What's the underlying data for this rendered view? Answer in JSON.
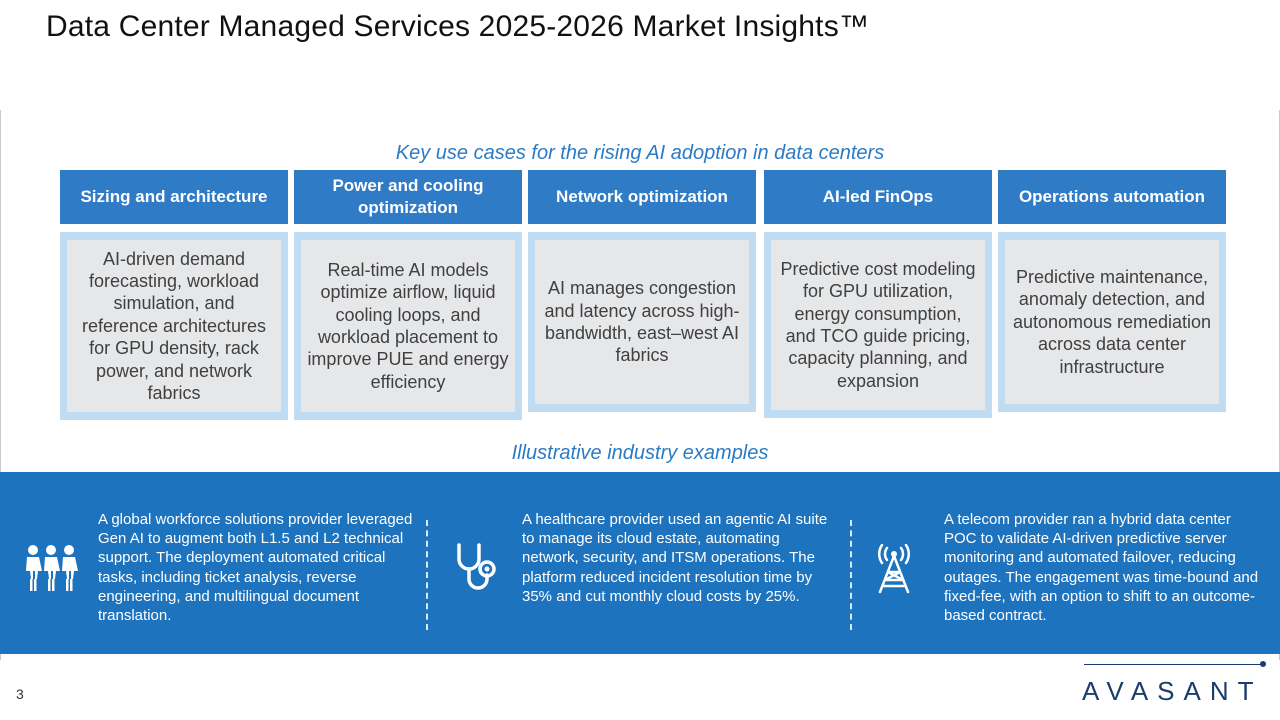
{
  "title": "Data Center Managed Services 2025-2026 Market Insights™",
  "use_cases_heading": "Key use cases for the rising AI adoption in data centers",
  "use_cases": [
    {
      "title": "Sizing and architecture",
      "body": "AI-driven demand forecasting, workload simulation, and reference architectures for GPU density, rack power, and network fabrics"
    },
    {
      "title": "Power and cooling optimization",
      "body": "Real-time AI models optimize airflow, liquid cooling loops, and workload placement to improve PUE and energy efficiency"
    },
    {
      "title": "Network optimization",
      "body": "AI manages congestion and latency across high-bandwidth, east–west AI fabrics"
    },
    {
      "title": "AI-led FinOps",
      "body": "Predictive cost modeling for GPU utilization, energy consumption, and TCO guide pricing, capacity planning, and expansion"
    },
    {
      "title": "Operations automation",
      "body": "Predictive maintenance, anomaly detection, and autonomous remediation across data center infrastructure"
    }
  ],
  "examples_heading": "Illustrative industry examples",
  "examples": [
    {
      "icon": "people-icon",
      "text": "A global workforce solutions provider leveraged Gen AI to augment both L1.5 and L2 technical support. The deployment automated critical tasks, including ticket analysis, reverse engineering, and multilingual document translation."
    },
    {
      "icon": "stethoscope-icon",
      "text": "A healthcare provider used an agentic AI suite to manage its cloud estate, automating network, security, and ITSM operations. The platform reduced incident resolution time by 35% and cut monthly cloud costs by 25%."
    },
    {
      "icon": "antenna-tower-icon",
      "text": "A telecom provider ran a hybrid data center POC to validate AI-driven predictive server monitoring and automated failover, reducing outages. The engagement was time-bound and fixed-fee, with an option to shift to an outcome-based contract."
    }
  ],
  "page_number": "3",
  "logo_text": "AVASANT",
  "colors": {
    "accent": "#2f7bc6",
    "band": "#1e73be",
    "card_frame": "#bfdcf3",
    "card_fill": "#e6e7e9"
  }
}
